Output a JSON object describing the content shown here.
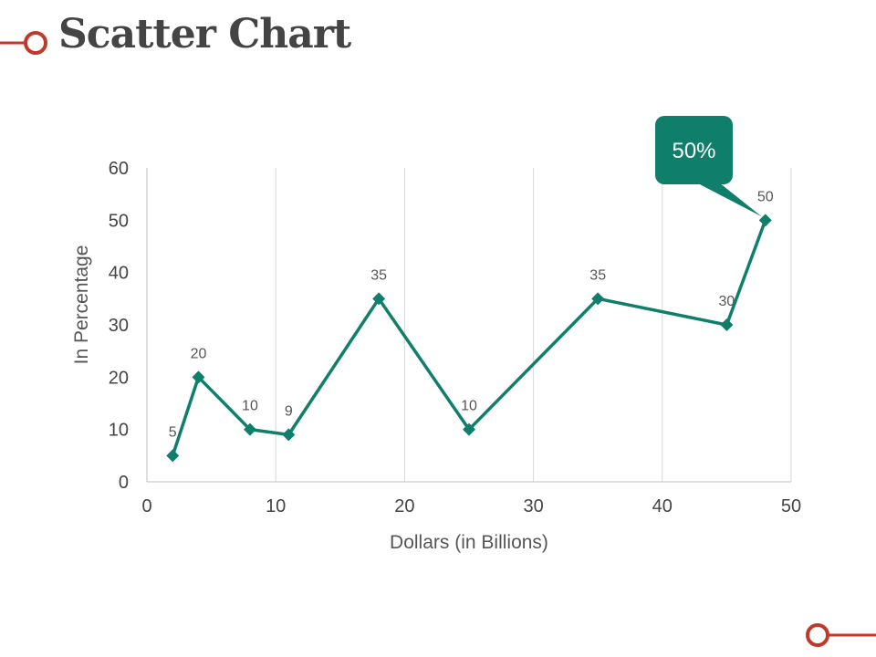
{
  "slide": {
    "title": "Scatter Chart"
  },
  "colors": {
    "accent": "#C0392B",
    "series": "#0F7F6B",
    "grid": "#D9D9D9",
    "axis": "#BFBFBF"
  },
  "chart_data": {
    "type": "scatter",
    "title": "",
    "xlabel": "Dollars (in Billions)",
    "ylabel": "In Percentage",
    "xlim": [
      0,
      50
    ],
    "ylim": [
      0,
      60
    ],
    "x_ticks": [
      0,
      10,
      20,
      30,
      40,
      50
    ],
    "y_ticks": [
      0,
      10,
      20,
      30,
      40,
      50,
      60
    ],
    "grid": "vertical",
    "connected": true,
    "marker": "diamond",
    "series": [
      {
        "x": [
          2,
          4,
          8,
          11,
          18,
          25,
          35,
          45,
          48
        ],
        "y": [
          5,
          20,
          10,
          9,
          35,
          10,
          35,
          30,
          50
        ],
        "labels": [
          "5",
          "20",
          "10",
          "9",
          "35",
          "10",
          "35",
          "30",
          "50"
        ]
      }
    ],
    "callout": {
      "text": "50%",
      "point_index": 8
    }
  }
}
